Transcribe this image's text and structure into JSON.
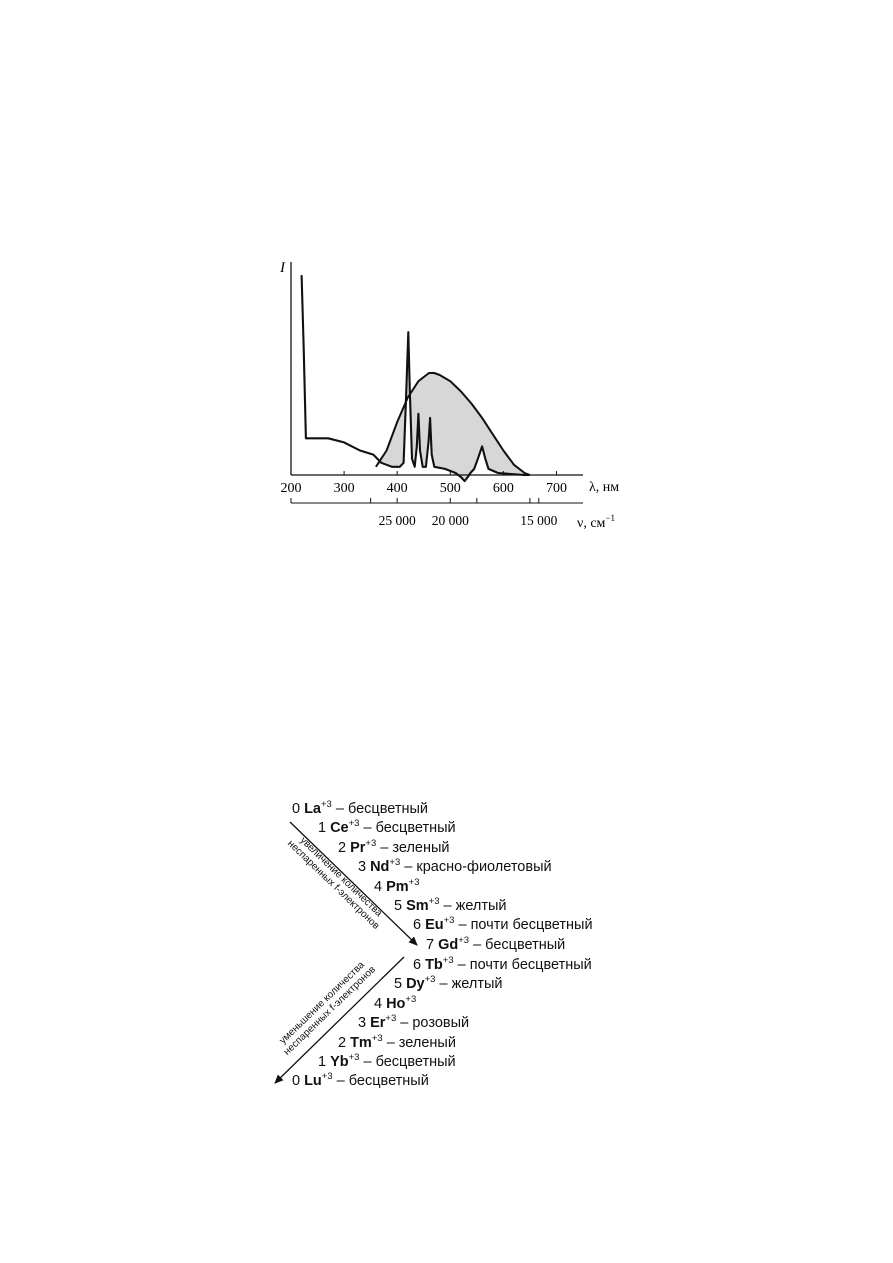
{
  "chart_data": {
    "type": "line",
    "ylabel": "I",
    "xlabel": "λ, нм",
    "xlim": [
      200,
      750
    ],
    "x_ticks": [
      200,
      300,
      400,
      500,
      600,
      700
    ],
    "secondary_axis": {
      "label": "ν, см",
      "label_exponent": "−1",
      "ticks": [
        "25 000",
        "20 000",
        "15 000"
      ],
      "tick_values": [
        25000,
        20000,
        15000
      ]
    },
    "series": [
      {
        "kind": "emission",
        "points": [
          [
            220,
            98
          ],
          [
            224,
            62
          ],
          [
            228,
            18
          ],
          [
            240,
            18
          ],
          [
            270,
            18
          ],
          [
            300,
            16
          ],
          [
            330,
            12
          ],
          [
            355,
            10
          ],
          [
            370,
            6
          ],
          [
            390,
            4
          ],
          [
            405,
            4
          ],
          [
            412,
            6
          ],
          [
            417,
            40
          ],
          [
            421,
            70
          ],
          [
            424,
            40
          ],
          [
            428,
            8
          ],
          [
            433,
            4
          ],
          [
            437,
            14
          ],
          [
            440,
            30
          ],
          [
            443,
            12
          ],
          [
            448,
            4
          ],
          [
            454,
            4
          ],
          [
            459,
            16
          ],
          [
            462,
            28
          ],
          [
            465,
            10
          ],
          [
            470,
            4
          ],
          [
            490,
            3
          ],
          [
            510,
            1
          ],
          [
            520,
            -1
          ],
          [
            527,
            -3
          ],
          [
            533,
            -1
          ],
          [
            538,
            1
          ],
          [
            545,
            3
          ],
          [
            552,
            8
          ],
          [
            560,
            14
          ],
          [
            566,
            8
          ],
          [
            572,
            3
          ],
          [
            590,
            1
          ],
          [
            640,
            0
          ],
          [
            650,
            0
          ]
        ]
      },
      {
        "kind": "filled",
        "points": [
          [
            360,
            4
          ],
          [
            380,
            12
          ],
          [
            400,
            26
          ],
          [
            420,
            38
          ],
          [
            440,
            46
          ],
          [
            460,
            50
          ],
          [
            470,
            50
          ],
          [
            480,
            49
          ],
          [
            500,
            46
          ],
          [
            520,
            41
          ],
          [
            540,
            35
          ],
          [
            560,
            28
          ],
          [
            580,
            20
          ],
          [
            600,
            12
          ],
          [
            620,
            5
          ],
          [
            640,
            1
          ],
          [
            650,
            0
          ]
        ]
      }
    ]
  },
  "series_diagram": {
    "upper_rows": [
      {
        "n": "0",
        "sym": "La",
        "charge": "+3",
        "desc": " – бесцветный"
      },
      {
        "n": "1",
        "sym": "Ce",
        "charge": "+3",
        "desc": " – бесцветный"
      },
      {
        "n": "2",
        "sym": "Pr",
        "charge": "+3",
        "desc": " – зеленый"
      },
      {
        "n": "3",
        "sym": "Nd",
        "charge": "+3",
        "desc": " – красно-фиолетовый"
      },
      {
        "n": "4",
        "sym": "Pm",
        "charge": "+3",
        "desc": ""
      },
      {
        "n": "5",
        "sym": "Sm",
        "charge": "+3",
        "desc": " – желтый"
      },
      {
        "n": "6",
        "sym": "Eu",
        "charge": "+3",
        "desc": " – почти бесцветный"
      },
      {
        "n": "7",
        "sym": "Gd",
        "charge": "+3",
        "desc": " – бесцветный"
      }
    ],
    "lower_rows": [
      {
        "n": "6",
        "sym": "Tb",
        "charge": "+3",
        "desc": " – почти бесцветный"
      },
      {
        "n": "5",
        "sym": "Dy",
        "charge": "+3",
        "desc": " – желтый"
      },
      {
        "n": "4",
        "sym": "Ho",
        "charge": "+3",
        "desc": ""
      },
      {
        "n": "3",
        "sym": "Er",
        "charge": "+3",
        "desc": " – розовый"
      },
      {
        "n": "2",
        "sym": "Tm",
        "charge": "+3",
        "desc": " – зеленый"
      },
      {
        "n": "1",
        "sym": "Yb",
        "charge": "+3",
        "desc": " – бесцветный"
      },
      {
        "n": "0",
        "sym": "Lu",
        "charge": "+3",
        "desc": " – бесцветный"
      }
    ],
    "increase_label": {
      "line1": "увеличение количества",
      "line2": "неспаренных f-электронов"
    },
    "decrease_label": {
      "line1": "уменьшение количества",
      "line2": "неспаренных f-электронов"
    }
  }
}
